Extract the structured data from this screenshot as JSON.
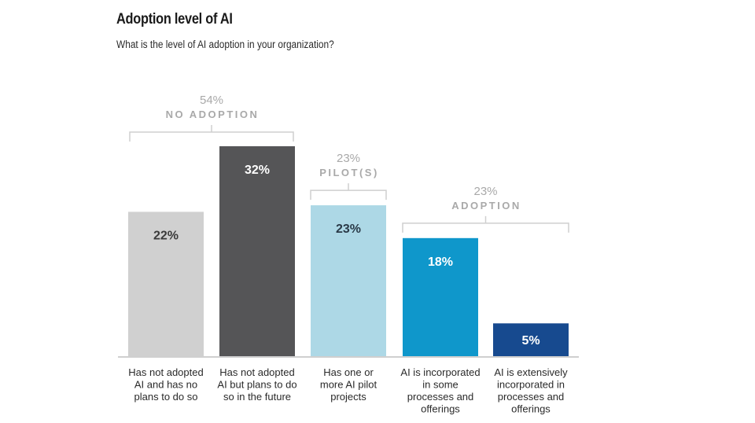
{
  "chart_data": {
    "type": "bar",
    "title": "Adoption level of AI",
    "subtitle": "What is the level of AI adoption in your organization?",
    "xlabel": "",
    "ylabel": "",
    "ylim": [
      0,
      32
    ],
    "grid": false,
    "legend": "none",
    "unit": "%",
    "categories": [
      [
        "Has not adopted",
        "AI and has no",
        "plans to do so"
      ],
      [
        "Has not adopted",
        "AI but plans to do",
        "so in the future"
      ],
      [
        "Has one or",
        "more AI pilot",
        "projects"
      ],
      [
        "AI is incorporated",
        "in some",
        "processes and",
        "offerings"
      ],
      [
        "AI is extensively",
        "incorporated in",
        "processes and",
        "offerings"
      ]
    ],
    "values": [
      22,
      32,
      23,
      18,
      5
    ],
    "value_labels": [
      "22%",
      "32%",
      "23%",
      "18%",
      "5%"
    ],
    "colors": [
      "#d0d0d0",
      "#555557",
      "#add8e6",
      "#0f97cb",
      "#174a8f"
    ],
    "label_colors": [
      "#3a3a3a",
      "#ffffff",
      "#2a3a48",
      "#ffffff",
      "#ffffff"
    ],
    "groups": [
      {
        "pct": "54%",
        "name": "NO ADOPTION",
        "bars": [
          0,
          1
        ]
      },
      {
        "pct": "23%",
        "name": "PILOT(S)",
        "bars": [
          2,
          2
        ]
      },
      {
        "pct": "23%",
        "name": "ADOPTION",
        "bars": [
          3,
          4
        ]
      }
    ],
    "annotation_color": "#a9a9a9"
  }
}
